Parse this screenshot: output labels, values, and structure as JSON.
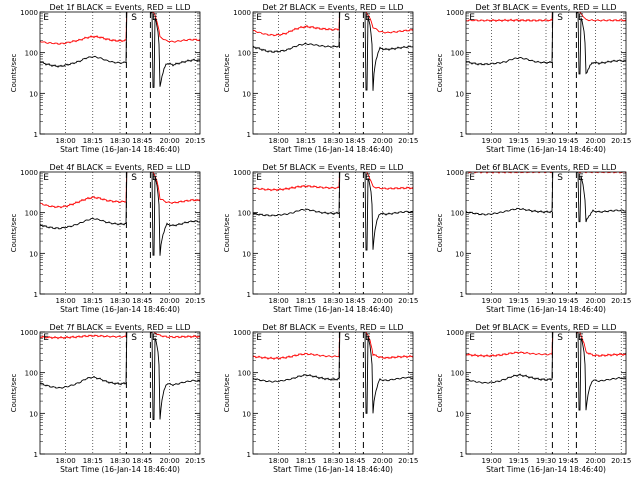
{
  "chart_data": [
    {
      "type": "line",
      "title": "Det 1f BLACK = Events, RED = LLD",
      "xlabel": "Start Time (16-Jan-14 18:46:40)",
      "ylabel": "Counts/sec",
      "xticks": [
        "18:00",
        "18:15",
        "18:30",
        "18:45",
        "20:00",
        "20:15"
      ],
      "yticks": [
        "1",
        "10",
        "100",
        "1000"
      ],
      "ylim": [
        1,
        1000
      ],
      "yscale": "log",
      "markers": [
        "E",
        "S",
        "E"
      ],
      "series": [
        {
          "color": "#ff0000",
          "values": [
            190,
            175,
            170,
            165,
            175,
            190,
            205,
            235,
            250,
            240,
            215,
            200,
            195,
            200,
            205,
            1000,
            1000,
            1000,
            240,
            195,
            185,
            195,
            205,
            210,
            205
          ]
        },
        {
          "color": "#000000",
          "values": [
            60,
            52,
            48,
            46,
            50,
            55,
            62,
            75,
            80,
            74,
            64,
            58,
            56,
            58,
            60,
            1000,
            1000,
            1000,
            14,
            55,
            50,
            56,
            62,
            66,
            64
          ]
        }
      ]
    },
    {
      "type": "line",
      "title": "Det 2f BLACK = Events, RED = LLD",
      "xlabel": "Start Time (16-Jan-14 18:46:40)",
      "ylabel": "Counts/sec",
      "xticks": [
        "18:00",
        "18:15",
        "18:30",
        "18:45",
        "20:00",
        "20:15"
      ],
      "yticks": [
        "1",
        "10",
        "100",
        "1000"
      ],
      "ylim": [
        1,
        1000
      ],
      "yscale": "log",
      "markers": [
        "E",
        "S",
        "E"
      ],
      "series": [
        {
          "color": "#ff0000",
          "values": [
            350,
            310,
            280,
            270,
            275,
            300,
            360,
            410,
            440,
            420,
            390,
            380,
            370,
            380,
            390,
            1000,
            1000,
            1000,
            420,
            330,
            310,
            320,
            335,
            350,
            360
          ]
        },
        {
          "color": "#000000",
          "values": [
            140,
            125,
            110,
            105,
            108,
            115,
            135,
            155,
            165,
            158,
            148,
            142,
            140,
            145,
            150,
            1000,
            1000,
            1000,
            12,
            128,
            120,
            125,
            132,
            138,
            142
          ]
        }
      ]
    },
    {
      "type": "line",
      "title": "Det 3f BLACK = Events, RED = LLD",
      "xlabel": "Start Time (16-Jan-14 18:46:40)",
      "ylabel": "Counts/sec",
      "xticks": [
        "19:00",
        "19:15",
        "19:30",
        "19:45",
        "20:00",
        "20:15"
      ],
      "yticks": [
        "1",
        "10",
        "100",
        "1000"
      ],
      "ylim": [
        1,
        1000
      ],
      "yscale": "log",
      "markers": [
        "E",
        "S",
        "E"
      ],
      "series": [
        {
          "color": "#ff0000",
          "values": [
            620,
            625,
            620,
            618,
            622,
            620,
            625,
            628,
            625,
            622,
            620,
            622,
            625,
            625,
            628,
            1000,
            1000,
            1000,
            640,
            625,
            620,
            622,
            624,
            626,
            625
          ]
        },
        {
          "color": "#000000",
          "values": [
            60,
            55,
            52,
            52,
            54,
            56,
            60,
            70,
            75,
            70,
            62,
            58,
            57,
            58,
            60,
            1000,
            1000,
            1000,
            30,
            58,
            55,
            58,
            62,
            64,
            62
          ]
        }
      ]
    },
    {
      "type": "line",
      "title": "Det 4f BLACK = Events, RED = LLD",
      "xlabel": "Start Time (16-Jan-14 18:46:40)",
      "ylabel": "Counts/sec",
      "xticks": [
        "18:00",
        "18:15",
        "18:30",
        "18:45",
        "20:00",
        "20:15"
      ],
      "yticks": [
        "1",
        "10",
        "100",
        "1000"
      ],
      "ylim": [
        1,
        1000
      ],
      "yscale": "log",
      "markers": [
        "E",
        "S",
        "E"
      ],
      "series": [
        {
          "color": "#ff0000",
          "values": [
            170,
            150,
            140,
            138,
            145,
            165,
            190,
            220,
            240,
            225,
            200,
            190,
            185,
            190,
            195,
            1000,
            1000,
            1000,
            220,
            180,
            175,
            185,
            195,
            205,
            200
          ]
        },
        {
          "color": "#000000",
          "values": [
            50,
            45,
            42,
            41,
            44,
            48,
            55,
            65,
            72,
            66,
            58,
            54,
            52,
            54,
            56,
            1000,
            1000,
            1000,
            9,
            52,
            48,
            52,
            58,
            62,
            60
          ]
        }
      ]
    },
    {
      "type": "line",
      "title": "Det 5f BLACK = Events, RED = LLD",
      "xlabel": "Start Time (16-Jan-14 18:46:40)",
      "ylabel": "Counts/sec",
      "xticks": [
        "18:00",
        "18:15",
        "18:30",
        "18:45",
        "20:00",
        "20:15"
      ],
      "yticks": [
        "1",
        "10",
        "100",
        "1000"
      ],
      "ylim": [
        1,
        1000
      ],
      "yscale": "log",
      "markers": [
        "E",
        "S",
        "E"
      ],
      "series": [
        {
          "color": "#ff0000",
          "values": [
            400,
            385,
            370,
            365,
            370,
            385,
            410,
            440,
            450,
            440,
            420,
            410,
            405,
            410,
            415,
            1000,
            1000,
            1000,
            430,
            400,
            390,
            395,
            400,
            405,
            405
          ]
        },
        {
          "color": "#000000",
          "values": [
            95,
            90,
            86,
            85,
            88,
            92,
            100,
            115,
            120,
            112,
            102,
            98,
            96,
            98,
            100,
            1000,
            1000,
            1000,
            12,
            96,
            92,
            96,
            102,
            106,
            104
          ]
        }
      ]
    },
    {
      "type": "line",
      "title": "Det 6f BLACK = Events, RED = LLD",
      "xlabel": "Start Time (16-Jan-14 18:46:40)",
      "ylabel": "Counts/sec",
      "xticks": [
        "19:00",
        "19:15",
        "19:30",
        "19:45",
        "20:00",
        "20:15"
      ],
      "yticks": [
        "1",
        "10",
        "100",
        "1000"
      ],
      "ylim": [
        1,
        1000
      ],
      "yscale": "log",
      "markers": [
        "E",
        "S",
        "E"
      ],
      "series": [
        {
          "color": "#ff0000",
          "values": [
            1000,
            1000,
            1000,
            1000,
            1000,
            1000,
            1000,
            1000,
            1000,
            1000,
            1000,
            1000,
            1000,
            1000,
            1000,
            1000,
            1000,
            1000,
            1000,
            1000,
            1000,
            1000,
            1000,
            1000,
            1000
          ]
        },
        {
          "color": "#000000",
          "values": [
            105,
            98,
            92,
            90,
            94,
            100,
            108,
            120,
            125,
            118,
            110,
            106,
            104,
            106,
            108,
            1000,
            1000,
            1000,
            60,
            110,
            104,
            108,
            112,
            114,
            112
          ]
        }
      ]
    },
    {
      "type": "line",
      "title": "Det 7f BLACK = Events, RED = LLD",
      "xlabel": "Start Time (16-Jan-14 18:46:40)",
      "ylabel": "Counts/sec",
      "xticks": [
        "18:00",
        "18:15",
        "18:30",
        "18:45",
        "20:00",
        "20:15"
      ],
      "yticks": [
        "1",
        "10",
        "100",
        "1000"
      ],
      "ylim": [
        1,
        1000
      ],
      "yscale": "log",
      "markers": [
        "E",
        "S",
        "E"
      ],
      "series": [
        {
          "color": "#ff0000",
          "values": [
            760,
            740,
            730,
            725,
            735,
            750,
            770,
            800,
            810,
            800,
            780,
            770,
            765,
            770,
            775,
            1000,
            1000,
            1000,
            820,
            760,
            750,
            760,
            770,
            775,
            770
          ]
        },
        {
          "color": "#000000",
          "values": [
            55,
            48,
            44,
            42,
            45,
            50,
            58,
            72,
            78,
            70,
            60,
            55,
            53,
            55,
            58,
            1000,
            1000,
            1000,
            7,
            54,
            50,
            55,
            60,
            64,
            62
          ]
        }
      ]
    },
    {
      "type": "line",
      "title": "Det 8f BLACK = Events, RED = LLD",
      "xlabel": "Start Time (16-Jan-14 18:46:40)",
      "ylabel": "Counts/sec",
      "xticks": [
        "18:00",
        "18:15",
        "18:30",
        "18:45",
        "20:00",
        "20:15"
      ],
      "yticks": [
        "1",
        "10",
        "100",
        "1000"
      ],
      "ylim": [
        1,
        1000
      ],
      "yscale": "log",
      "markers": [
        "E",
        "S",
        "E"
      ],
      "series": [
        {
          "color": "#ff0000",
          "values": [
            250,
            240,
            230,
            225,
            228,
            238,
            255,
            280,
            290,
            280,
            265,
            255,
            250,
            255,
            260,
            1000,
            1000,
            1000,
            280,
            240,
            230,
            238,
            245,
            250,
            250
          ]
        },
        {
          "color": "#000000",
          "values": [
            72,
            66,
            62,
            60,
            62,
            66,
            72,
            82,
            88,
            82,
            75,
            70,
            68,
            70,
            72,
            1000,
            1000,
            1000,
            10,
            68,
            64,
            68,
            72,
            76,
            75
          ]
        }
      ]
    },
    {
      "type": "line",
      "title": "Det 9f BLACK = Events, RED = LLD",
      "xlabel": "Start Time (16-Jan-14 18:46:40)",
      "ylabel": "Counts/sec",
      "xticks": [
        "19:00",
        "19:15",
        "19:30",
        "19:45",
        "20:00",
        "20:15"
      ],
      "yticks": [
        "1",
        "10",
        "100",
        "1000"
      ],
      "ylim": [
        1,
        1000
      ],
      "yscale": "log",
      "markers": [
        "E",
        "S",
        "E"
      ],
      "series": [
        {
          "color": "#ff0000",
          "values": [
            280,
            270,
            262,
            258,
            262,
            270,
            285,
            305,
            315,
            305,
            292,
            285,
            280,
            285,
            290,
            1000,
            1000,
            1000,
            320,
            270,
            262,
            268,
            276,
            282,
            280
          ]
        },
        {
          "color": "#000000",
          "values": [
            68,
            62,
            58,
            56,
            58,
            62,
            70,
            82,
            88,
            82,
            74,
            69,
            67,
            69,
            72,
            1000,
            1000,
            1000,
            12,
            66,
            62,
            66,
            70,
            74,
            72
          ]
        }
      ]
    }
  ]
}
